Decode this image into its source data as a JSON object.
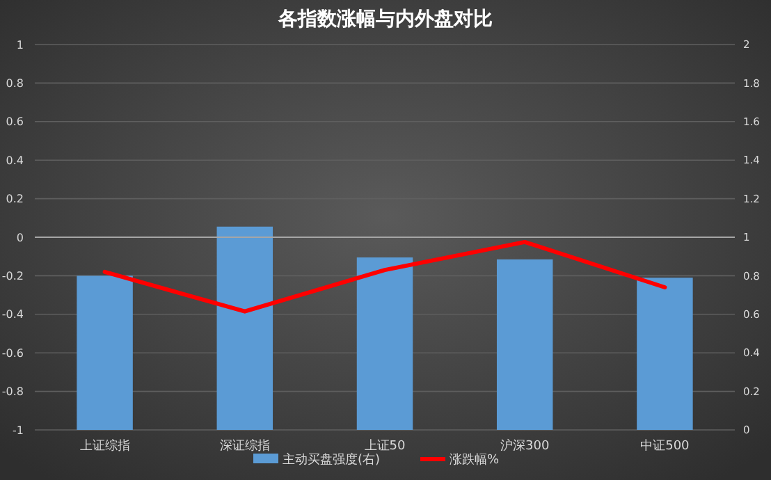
{
  "chart_data": {
    "type": "bar",
    "title": "各指数涨幅与内外盘对比",
    "categories": [
      "上证综指",
      "深证综指",
      "上证50",
      "沪深300",
      "中证500"
    ],
    "series": [
      {
        "name": "主动买盘强度(右)",
        "axis": "y2",
        "color": "#5b9bd5",
        "values": [
          0.8,
          1.055,
          0.895,
          0.885,
          0.79
        ]
      },
      {
        "name": "涨跌幅%",
        "type": "line",
        "color": "#ff0000",
        "values": [
          -0.18,
          -0.385,
          -0.17,
          -0.025,
          -0.26
        ]
      }
    ],
    "ylim": [
      -1,
      1
    ],
    "yticks": [
      -1,
      -0.8,
      -0.6,
      -0.4,
      -0.2,
      0,
      0.2,
      0.4,
      0.6,
      0.8,
      1
    ],
    "y2lim": [
      0,
      2
    ],
    "y2ticks": [
      0,
      0.2,
      0.4,
      0.6,
      0.8,
      1,
      1.2,
      1.4,
      1.6,
      1.8,
      2
    ],
    "grid": "y",
    "legend": "bottom",
    "marker": "none",
    "line_style": "solid"
  }
}
